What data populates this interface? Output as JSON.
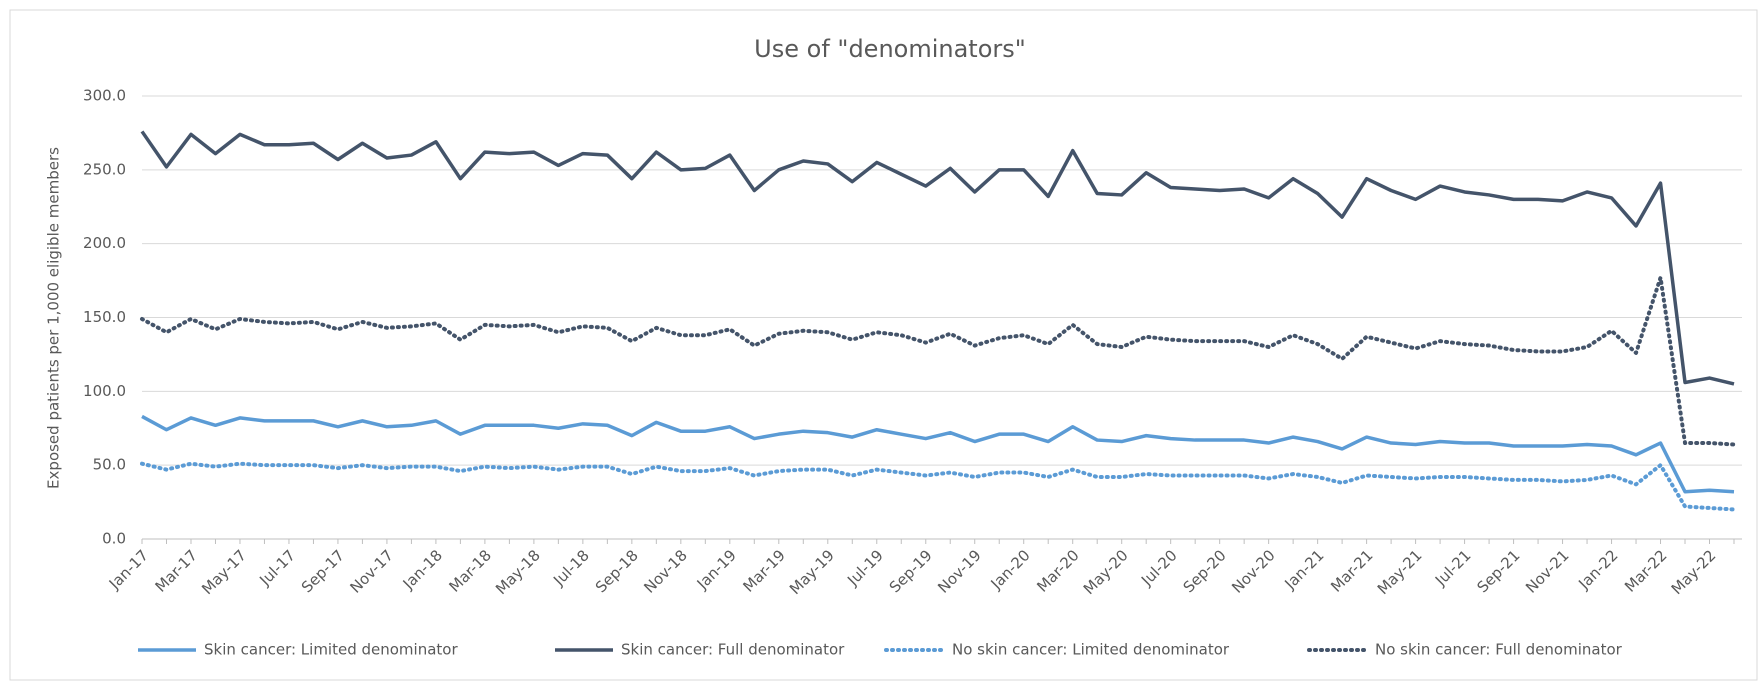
{
  "chart_data": {
    "type": "line",
    "title": "Use of \"denominators\"",
    "y_label": "Exposed patients per 1,000 eligible members",
    "categories": [
      "Jan-17",
      null,
      "Mar-17",
      null,
      "May-17",
      null,
      "Jul-17",
      null,
      "Sep-17",
      null,
      "Nov-17",
      null,
      "Jan-18",
      null,
      "Mar-18",
      null,
      "May-18",
      null,
      "Jul-18",
      null,
      "Sep-18",
      null,
      "Nov-18",
      null,
      "Jan-19",
      null,
      "Mar-19",
      null,
      "May-19",
      null,
      "Jul-19",
      null,
      "Sep-19",
      null,
      "Nov-19",
      null,
      "Jan-20",
      null,
      "Mar-20",
      null,
      "May-20",
      null,
      "Jul-20",
      null,
      "Sep-20",
      null,
      "Nov-20",
      null,
      "Jan-21",
      null,
      "Mar-21",
      null,
      "May-21",
      null,
      "Jul-21",
      null,
      "Sep-21",
      null,
      "Nov-21",
      null,
      "Jan-22",
      null,
      "Mar-22",
      null,
      "May-22",
      null
    ],
    "series": [
      {
        "name": "Skin cancer: Limited denominator",
        "color": "#5b9bd5",
        "style": "solid",
        "values": [
          83,
          74,
          82,
          77,
          82,
          80,
          80,
          80,
          76,
          80,
          76,
          77,
          80,
          71,
          77,
          77,
          77,
          75,
          78,
          77,
          70,
          79,
          73,
          73,
          76,
          68,
          71,
          73,
          72,
          69,
          74,
          71,
          68,
          72,
          66,
          71,
          71,
          66,
          76,
          67,
          66,
          70,
          68,
          67,
          67,
          67,
          65,
          69,
          66,
          61,
          69,
          65,
          64,
          66,
          65,
          65,
          63,
          63,
          63,
          64,
          63,
          57,
          65,
          32,
          33,
          32
        ]
      },
      {
        "name": "Skin cancer: Full denominator",
        "color": "#44546a",
        "style": "solid",
        "values": [
          276,
          252,
          274,
          261,
          274,
          267,
          267,
          268,
          257,
          268,
          258,
          260,
          269,
          244,
          262,
          261,
          262,
          253,
          261,
          260,
          244,
          262,
          250,
          251,
          260,
          236,
          250,
          256,
          254,
          242,
          255,
          247,
          239,
          251,
          235,
          250,
          250,
          232,
          263,
          234,
          233,
          248,
          238,
          237,
          236,
          237,
          231,
          244,
          234,
          218,
          244,
          236,
          230,
          239,
          235,
          233,
          230,
          230,
          229,
          235,
          231,
          212,
          241,
          106,
          109,
          105
        ]
      },
      {
        "name": "No skin cancer: Limited denominator",
        "color": "#5b9bd5",
        "style": "dotted",
        "values": [
          51,
          47,
          51,
          49,
          51,
          50,
          50,
          50,
          48,
          50,
          48,
          49,
          49,
          46,
          49,
          48,
          49,
          47,
          49,
          49,
          44,
          49,
          46,
          46,
          48,
          43,
          46,
          47,
          47,
          43,
          47,
          45,
          43,
          45,
          42,
          45,
          45,
          42,
          47,
          42,
          42,
          44,
          43,
          43,
          43,
          43,
          41,
          44,
          42,
          38,
          43,
          42,
          41,
          42,
          42,
          41,
          40,
          40,
          39,
          40,
          43,
          37,
          50,
          22,
          21,
          20
        ]
      },
      {
        "name": "No skin cancer: Full denominator",
        "color": "#44546a",
        "style": "dotted",
        "values": [
          149,
          140,
          149,
          142,
          149,
          147,
          146,
          147,
          142,
          147,
          143,
          144,
          146,
          135,
          145,
          144,
          145,
          140,
          144,
          143,
          134,
          143,
          138,
          138,
          142,
          131,
          139,
          141,
          140,
          135,
          140,
          138,
          133,
          139,
          131,
          136,
          138,
          132,
          145,
          132,
          130,
          137,
          135,
          134,
          134,
          134,
          130,
          138,
          132,
          122,
          137,
          133,
          129,
          134,
          132,
          131,
          128,
          127,
          127,
          130,
          141,
          126,
          177,
          65,
          65,
          64
        ]
      }
    ],
    "ylim": [
      0,
      300
    ],
    "yticks": [
      {
        "value": 0,
        "label": "0.0"
      },
      {
        "value": 50,
        "label": "50.0"
      },
      {
        "value": 100,
        "label": "100.0"
      },
      {
        "value": 150,
        "label": "150.0"
      },
      {
        "value": 200,
        "label": "200.0"
      },
      {
        "value": 250,
        "label": "250.0"
      },
      {
        "value": 300,
        "label": "300.0"
      }
    ],
    "grid": true,
    "legend": "bottom"
  }
}
